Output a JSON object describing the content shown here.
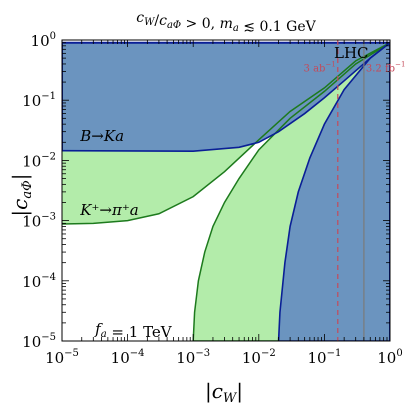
{
  "title": {
    "parts": [
      {
        "t": "c",
        "style": "italic"
      },
      {
        "t": "W",
        "style": "italic-sub"
      },
      {
        "t": "/",
        "style": "normal"
      },
      {
        "t": "c",
        "style": "italic"
      },
      {
        "t": "aΦ",
        "style": "italic-sub"
      },
      {
        "t": " > 0,   ",
        "style": "normal"
      },
      {
        "t": "m",
        "style": "italic"
      },
      {
        "t": "a",
        "style": "italic-sub"
      },
      {
        "t": " ≲ 0.1 GeV",
        "style": "normal"
      }
    ]
  },
  "chart_data": {
    "type": "area",
    "xscale": "log",
    "yscale": "log",
    "xlim": [
      1e-05,
      1
    ],
    "ylim": [
      1e-05,
      1
    ],
    "xlabel": "|c_W|",
    "ylabel": "|c_aΦ|",
    "x_ticks": [
      {
        "base": "10",
        "exp": "−5"
      },
      {
        "base": "10",
        "exp": "−4"
      },
      {
        "base": "10",
        "exp": "−3"
      },
      {
        "base": "10",
        "exp": "−2"
      },
      {
        "base": "10",
        "exp": "−1"
      },
      {
        "base": "10",
        "exp": "0"
      }
    ],
    "y_ticks": [
      {
        "base": "10",
        "exp": "−5"
      },
      {
        "base": "10",
        "exp": "−4"
      },
      {
        "base": "10",
        "exp": "−3"
      },
      {
        "base": "10",
        "exp": "−2"
      },
      {
        "base": "10",
        "exp": "−1"
      },
      {
        "base": "10",
        "exp": "0"
      }
    ],
    "colors": {
      "blue_fill": "#6b94bf",
      "blue_line": "#0a1f96",
      "green_fill": "#b3ecaa",
      "green_line": "#1d7a1d",
      "red_line": "#c44a5a",
      "grey_line": "#7a7a7a"
    },
    "regions": [
      {
        "name": "B→Ka",
        "color": "blue",
        "boundary_upper": [
          [
            1e-05,
            0.9
          ],
          [
            1,
            0.9
          ]
        ],
        "boundary_left": [
          [
            1e-05,
            0.0145
          ],
          [
            1e-05,
            0.9
          ]
        ],
        "curve_low": [
          [
            1e-05,
            0.0145
          ],
          [
            0.001,
            0.0142
          ],
          [
            0.005,
            0.0165
          ],
          [
            0.01,
            0.02
          ],
          [
            0.02,
            0.03
          ],
          [
            0.05,
            0.06
          ],
          [
            0.1,
            0.11
          ],
          [
            0.2,
            0.21
          ],
          [
            0.5,
            0.5
          ],
          [
            1,
            0.9
          ]
        ],
        "curve_right": [
          [
            0.02,
            1e-05
          ],
          [
            0.021,
            3e-05
          ],
          [
            0.025,
            0.0002
          ],
          [
            0.03,
            0.0008
          ],
          [
            0.04,
            0.003
          ],
          [
            0.06,
            0.011
          ],
          [
            0.1,
            0.04
          ],
          [
            0.2,
            0.15
          ],
          [
            0.5,
            0.5
          ],
          [
            1,
            0.9
          ]
        ]
      },
      {
        "name": "K⁺→π⁺a",
        "color": "green",
        "curve_upper": [
          [
            1e-05,
            0.0145
          ],
          [
            0.001,
            0.0142
          ],
          [
            0.005,
            0.0165
          ],
          [
            0.01,
            0.02
          ],
          [
            0.02,
            0.03
          ],
          [
            0.05,
            0.06
          ],
          [
            0.1,
            0.11
          ],
          [
            0.2,
            0.21
          ],
          [
            0.5,
            0.5
          ],
          [
            1,
            0.9
          ]
        ],
        "curve_lower": [
          [
            1e-05,
            0.00088
          ],
          [
            3e-05,
            0.0009
          ],
          [
            0.0001,
            0.001
          ],
          [
            0.0003,
            0.0013
          ],
          [
            0.001,
            0.0025
          ],
          [
            0.003,
            0.0065
          ],
          [
            0.01,
            0.022
          ],
          [
            0.03,
            0.065
          ],
          [
            0.1,
            0.16
          ],
          [
            0.3,
            0.45
          ],
          [
            1,
            0.9
          ]
        ],
        "curve_right": [
          [
            0.001,
            1e-05
          ],
          [
            0.00105,
            3e-05
          ],
          [
            0.0012,
            0.0001
          ],
          [
            0.0015,
            0.0003
          ],
          [
            0.002,
            0.0008
          ],
          [
            0.003,
            0.002
          ],
          [
            0.005,
            0.005
          ],
          [
            0.01,
            0.015
          ],
          [
            0.03,
            0.05
          ],
          [
            0.1,
            0.14
          ],
          [
            0.3,
            0.4
          ],
          [
            1,
            0.9
          ]
        ]
      }
    ],
    "vlines": [
      {
        "x": 0.16,
        "label": "3 ab",
        "label_sup": "−1",
        "style": "dashed",
        "color": "red"
      },
      {
        "x": 0.4,
        "label": "3.2 fb",
        "label_sup": "−1",
        "style": "solid",
        "color": "grey"
      }
    ],
    "annotations": [
      {
        "id": "lhc",
        "text": "LHC",
        "at": [
          0.14,
          0.5
        ],
        "color": "red"
      },
      {
        "id": "b_ka",
        "text": "B→Ka",
        "at": [
          1.9e-05,
          0.021
        ],
        "italic": true
      },
      {
        "id": "k_pia",
        "text": "K⁺→π⁺a",
        "at": [
          1.9e-05,
          0.00125
        ],
        "italic": true
      },
      {
        "id": "fa",
        "text_parts": [
          {
            "t": "f",
            "style": "italic"
          },
          {
            "t": "a",
            "style": "italic-sub"
          },
          {
            "t": " = 1 TeV",
            "style": "normal"
          }
        ],
        "at": [
          3.2e-05,
          1.3e-05
        ]
      }
    ]
  }
}
